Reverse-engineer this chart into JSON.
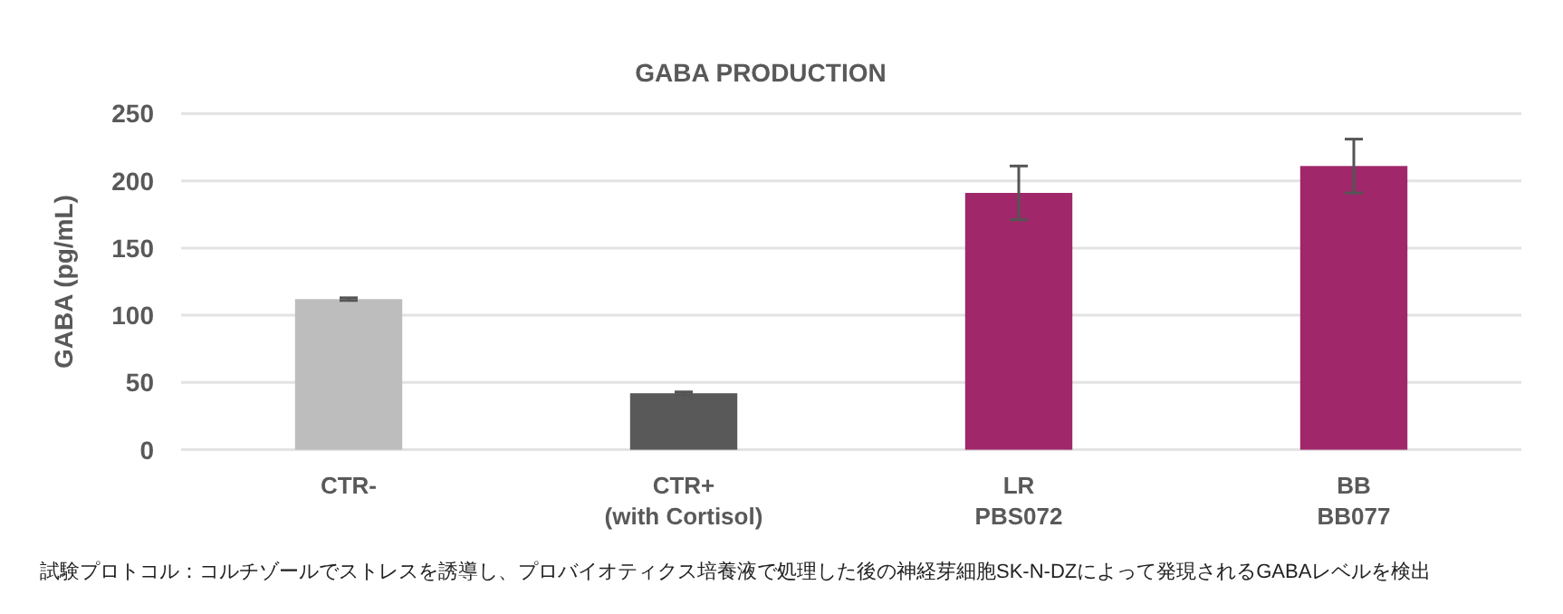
{
  "chart_data": {
    "type": "bar",
    "title": "GABA PRODUCTION",
    "ylabel": "GABA (pg/mL)",
    "categories": [
      "CTR-",
      "CTR+\n(with Cortisol)",
      "LR\nPBS072",
      "BB\nBB077"
    ],
    "values": [
      112,
      42,
      191,
      211
    ],
    "errors": [
      1,
      1,
      20,
      20
    ],
    "colors": [
      "#bdbdbd",
      "#595959",
      "#a0276a",
      "#a0276a"
    ],
    "ylim": [
      0,
      250
    ],
    "yticks": [
      0,
      50,
      100,
      150,
      200,
      250
    ],
    "grid": "y",
    "annotations": [
      "試験プロトコル：コルチゾールでストレスを誘導し、プロバイオティクス培養液で処理した後の神経芽細胞SK-N-DZによって発現されるGABAレベルを検出"
    ]
  }
}
